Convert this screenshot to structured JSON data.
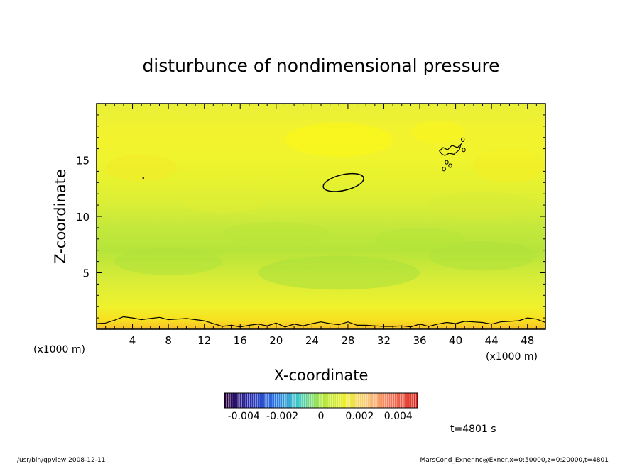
{
  "chart_data": {
    "type": "heatmap",
    "title": "disturbunce of nondimensional pressure",
    "xlabel": "X-coordinate",
    "ylabel": "Z-coordinate",
    "x_unit_left": "(x1000 m)",
    "x_unit_right": "(x1000 m)",
    "xlim": [
      0,
      50
    ],
    "ylim": [
      0,
      20
    ],
    "x_ticks": [
      "4",
      "8",
      "12",
      "16",
      "20",
      "24",
      "28",
      "32",
      "36",
      "40",
      "44",
      "48"
    ],
    "y_ticks": [
      "5",
      "10",
      "15"
    ],
    "colorbar": {
      "range": [
        -0.005,
        0.005
      ],
      "tick_labels": [
        "-0.004",
        "-0.002",
        "0",
        "0.002",
        "0.004"
      ],
      "tick_values": [
        -0.004,
        -0.002,
        0,
        0.002,
        0.004
      ]
    },
    "time_label": "t=4801 s",
    "footer_left": "/usr/bin/gpview   2008-12-11",
    "footer_right": "MarsCond_Exner.nc@Exner,x=0:50000,z=0:20000,t=4801",
    "contours": [
      {
        "name": "ellipse",
        "cx": 27.5,
        "cz": 13.0,
        "rx": 2.3,
        "rz": 0.7
      },
      {
        "name": "surface-line",
        "points": [
          [
            0,
            0.5
          ],
          [
            1,
            0.55
          ],
          [
            2,
            0.8
          ],
          [
            3,
            1.1
          ],
          [
            4,
            1.0
          ],
          [
            5,
            0.85
          ],
          [
            6,
            0.95
          ],
          [
            7,
            1.05
          ],
          [
            8,
            0.85
          ],
          [
            9,
            0.9
          ],
          [
            10,
            0.95
          ],
          [
            11,
            0.85
          ],
          [
            12,
            0.75
          ],
          [
            13,
            0.5
          ],
          [
            14,
            0.25
          ],
          [
            15,
            0.35
          ],
          [
            16,
            0.2
          ],
          [
            17,
            0.35
          ],
          [
            18,
            0.45
          ],
          [
            19,
            0.3
          ],
          [
            20,
            0.55
          ],
          [
            21,
            0.2
          ],
          [
            22,
            0.45
          ],
          [
            23,
            0.3
          ],
          [
            24,
            0.5
          ],
          [
            25,
            0.65
          ],
          [
            26,
            0.5
          ],
          [
            27,
            0.4
          ],
          [
            28,
            0.65
          ],
          [
            29,
            0.35
          ],
          [
            30,
            0.35
          ],
          [
            31,
            0.3
          ],
          [
            32,
            0.25
          ],
          [
            33,
            0.25
          ],
          [
            34,
            0.3
          ],
          [
            35,
            0.2
          ],
          [
            36,
            0.45
          ],
          [
            37,
            0.25
          ],
          [
            38,
            0.45
          ],
          [
            39,
            0.6
          ],
          [
            40,
            0.5
          ],
          [
            41,
            0.7
          ],
          [
            42,
            0.65
          ],
          [
            43,
            0.6
          ],
          [
            44,
            0.45
          ],
          [
            45,
            0.65
          ],
          [
            46,
            0.7
          ],
          [
            47,
            0.75
          ],
          [
            48,
            1.0
          ],
          [
            49,
            0.9
          ],
          [
            50,
            0.6
          ]
        ]
      }
    ]
  }
}
